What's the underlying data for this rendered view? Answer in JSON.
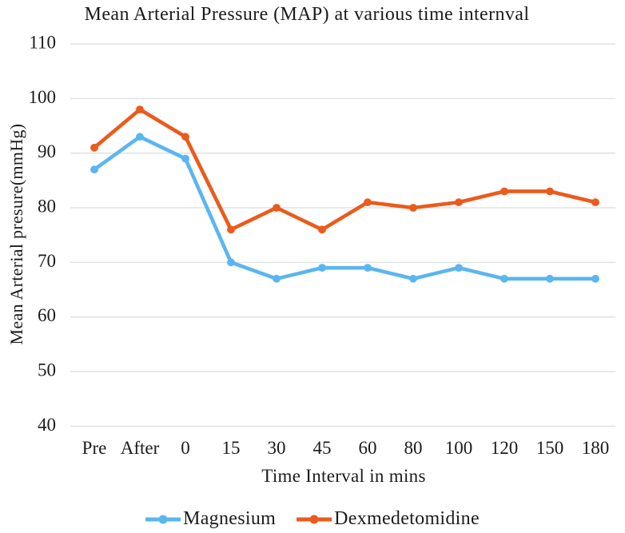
{
  "title": "Mean Arterial Pressure (MAP) at various time internval",
  "chart_data": {
    "type": "line",
    "title": "Mean Arterial Pressure (MAP) at various time internval",
    "xlabel": "Time Interval in mins",
    "ylabel": "Mean Arterial presure(mmHg)",
    "categories": [
      "Pre",
      "After",
      "0",
      "15",
      "30",
      "45",
      "60",
      "80",
      "100",
      "120",
      "150",
      "180"
    ],
    "series": [
      {
        "name": "Magnesium",
        "color": "#5BB5F0",
        "values": [
          87,
          93,
          89,
          70,
          67,
          69,
          69,
          67,
          69,
          67,
          67,
          67
        ]
      },
      {
        "name": "Dexmedetomidine",
        "color": "#EA5B1C",
        "values": [
          91,
          98,
          93,
          76,
          80,
          76,
          81,
          80,
          81,
          83,
          83,
          81
        ]
      }
    ],
    "ylim": [
      40,
      110
    ],
    "yticks": [
      40,
      50,
      60,
      70,
      80,
      90,
      100,
      110
    ],
    "grid": "horizontal",
    "legend_position": "bottom",
    "gridline_color": "#D8DDDC",
    "text_color": "#1B1B1B",
    "background": "#FFFFFF"
  }
}
